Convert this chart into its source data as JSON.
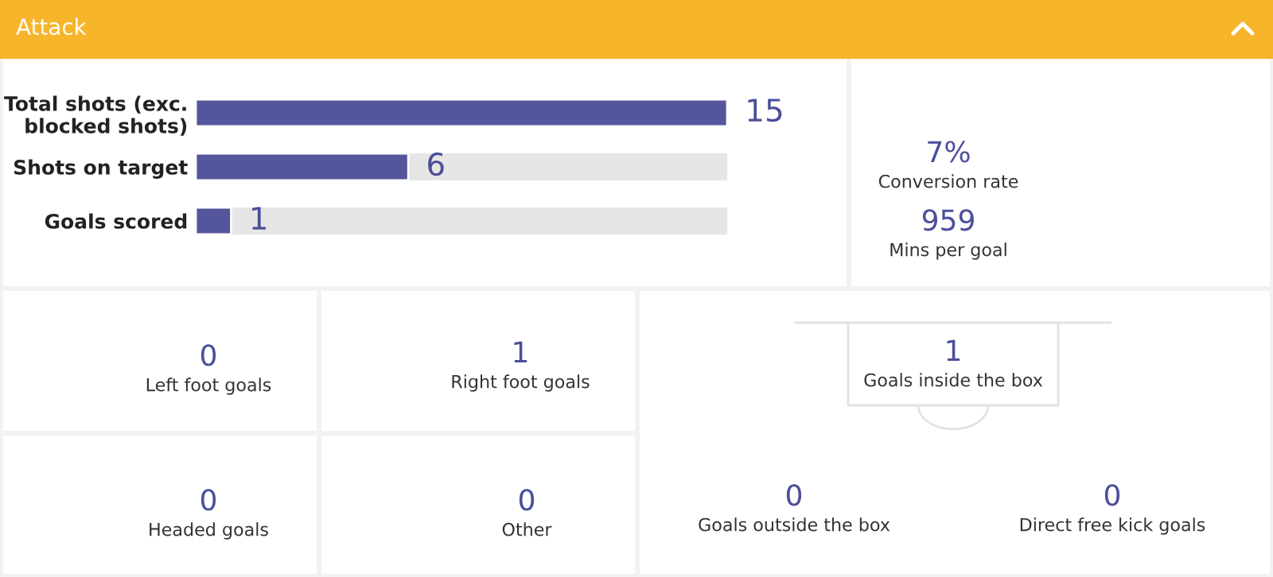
{
  "chart_data": [
    {
      "type": "bar",
      "title": "Attack",
      "orientation": "horizontal",
      "categories": [
        "Total shots (exc.\nblocked shots)",
        "Shots on target",
        "Goals scored"
      ],
      "values": [
        15,
        6,
        1
      ],
      "color": "#55559b",
      "xlim": [
        0,
        15
      ],
      "data_labels": true,
      "tick_labels": "y"
    },
    {
      "type": "other",
      "annotations": [
        "7%",
        "Conversion rate",
        "959",
        "Mins per goal",
        "0",
        "Left foot goals",
        "1",
        "Right foot goals",
        "0",
        "Headed goals",
        "0",
        "Other",
        "1",
        "Goals inside the box",
        "0",
        "Goals outside the box",
        "0",
        "Direct free kick goals"
      ]
    }
  ]
}
